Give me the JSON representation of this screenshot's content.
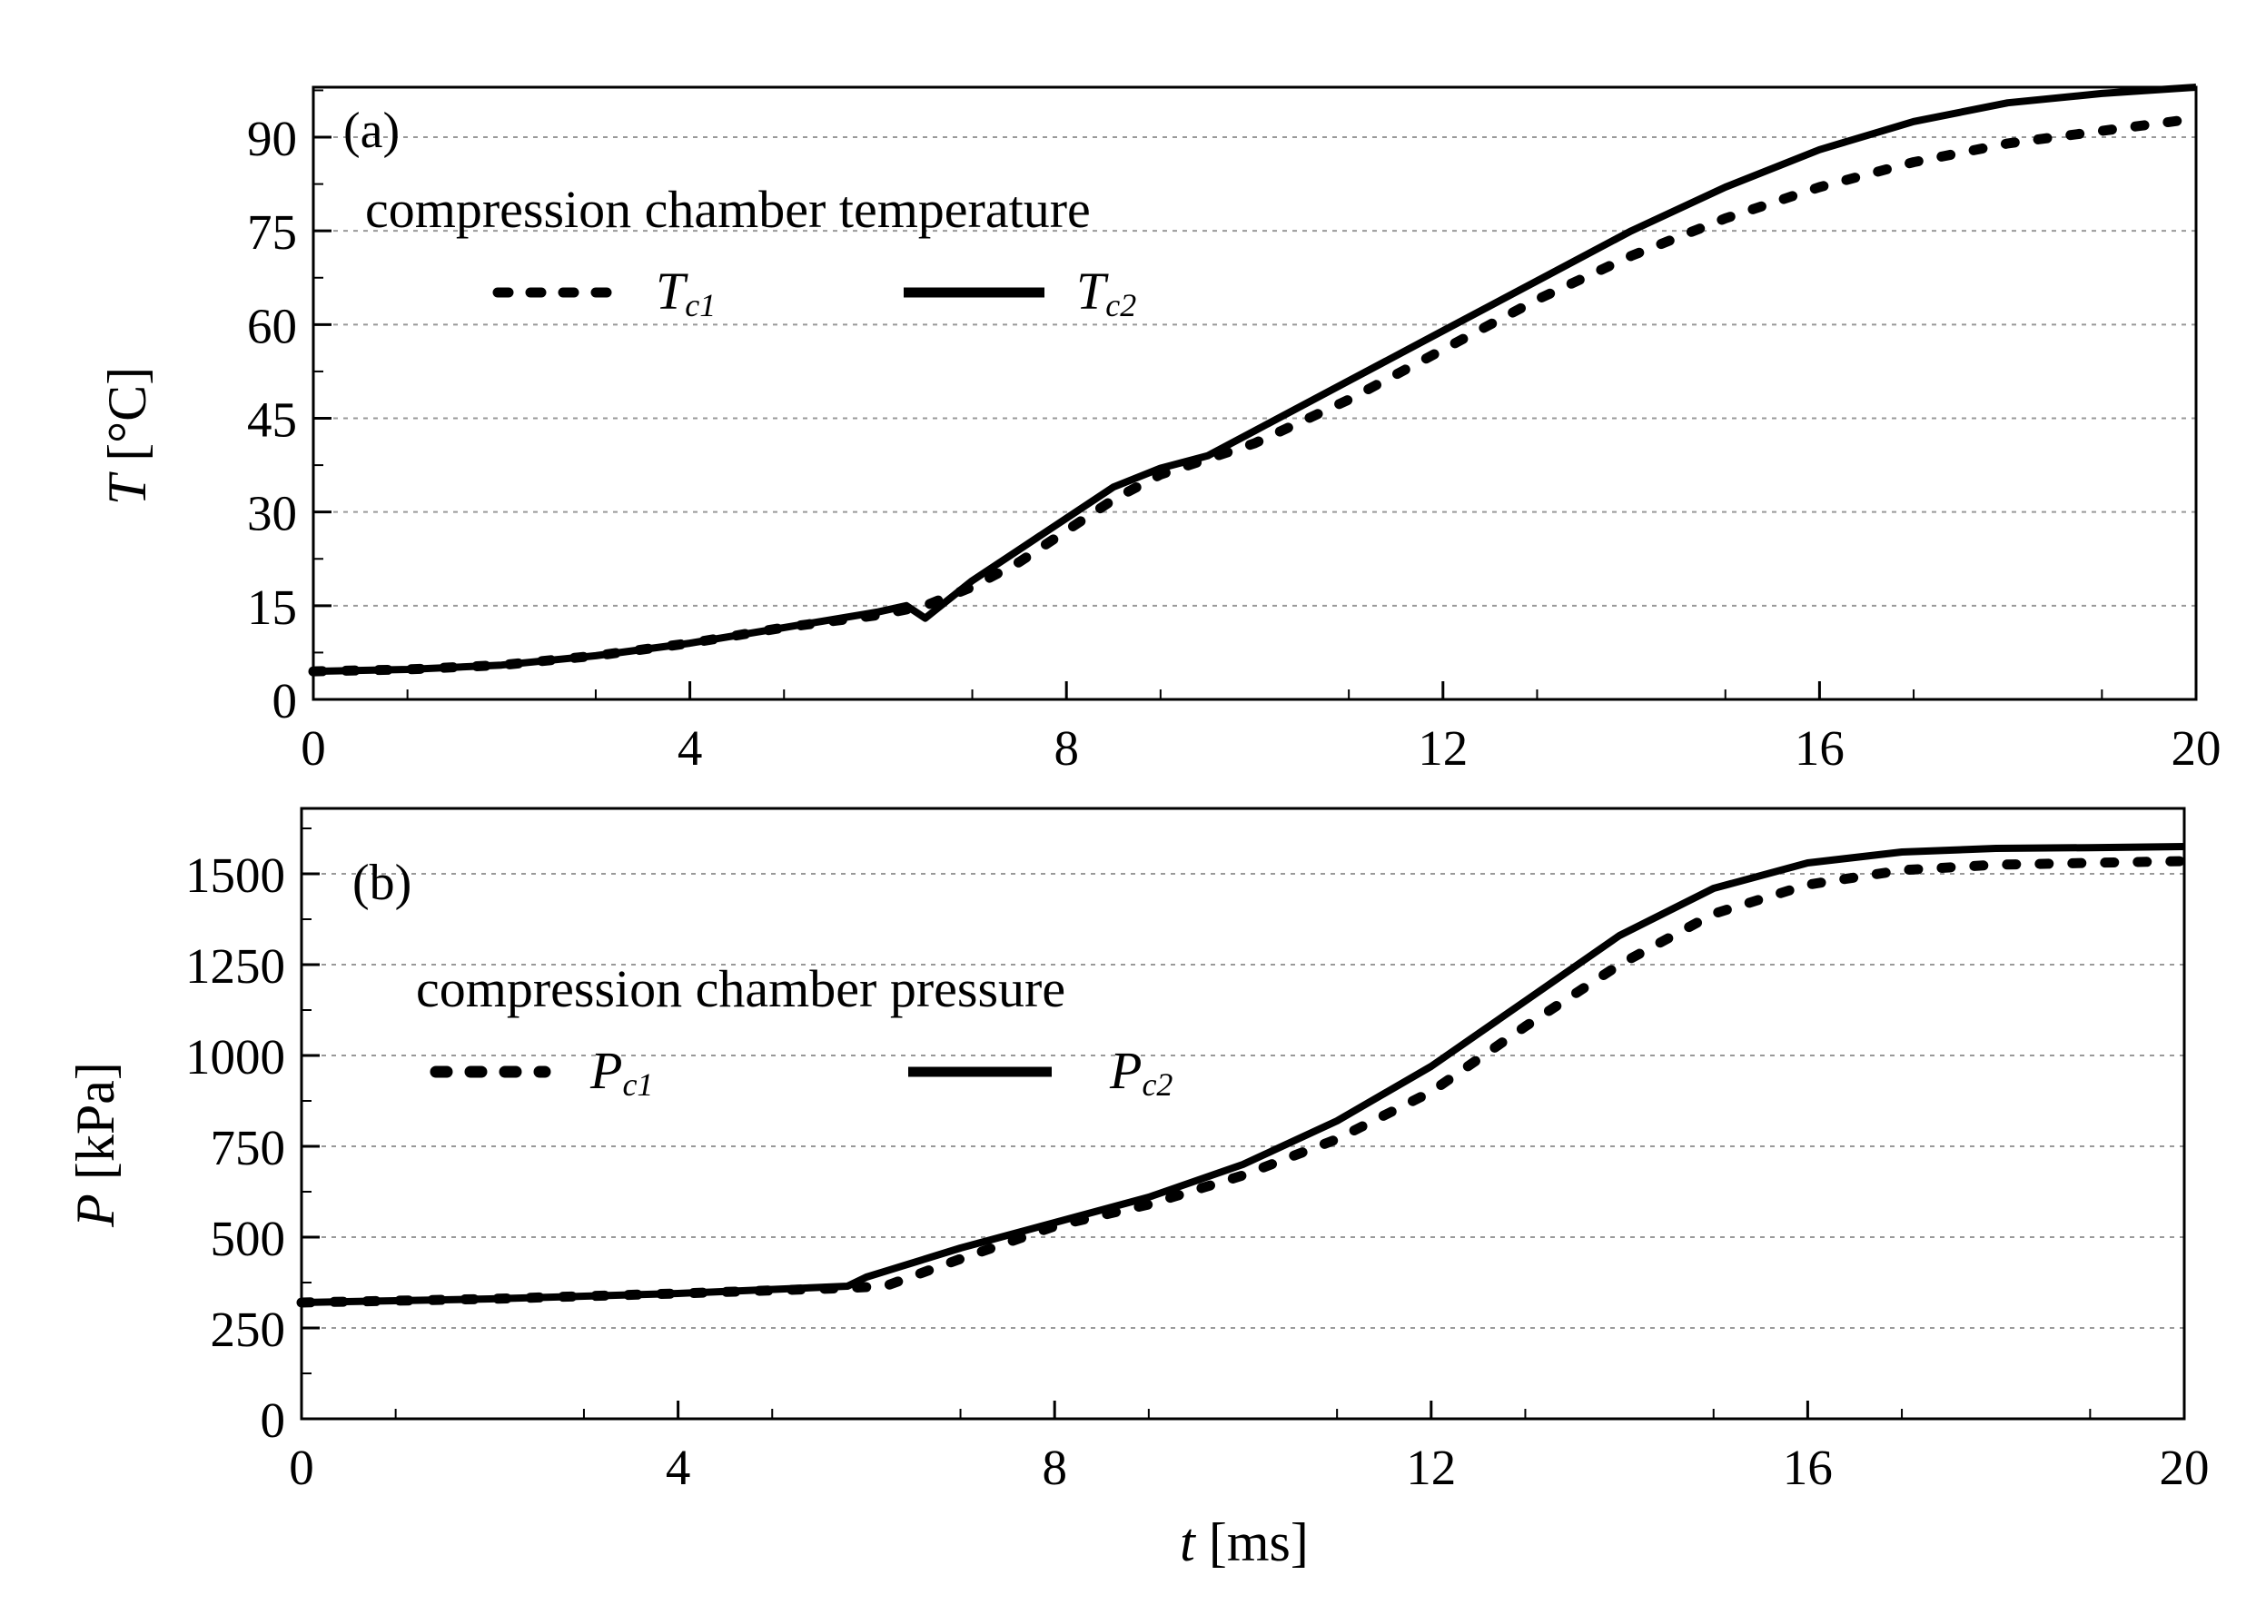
{
  "chart_data": [
    {
      "type": "line",
      "panel_label": "(a)",
      "title": "compression chamber temperature",
      "ylabel_symbol": "T",
      "ylabel_unit": "[°C]",
      "xlim": [
        0,
        20
      ],
      "ylim": [
        0,
        98
      ],
      "xticks": [
        0,
        4,
        8,
        12,
        16,
        20
      ],
      "yticks": [
        0,
        15,
        30,
        45,
        60,
        75,
        90
      ],
      "grid": "horizontal dotted",
      "series": [
        {
          "name": "T",
          "sub": "c1",
          "style": "dotted",
          "x": [
            0,
            1,
            2,
            3,
            4,
            5,
            6,
            6.5,
            7,
            7.5,
            8,
            8.5,
            9,
            9.5,
            10,
            11,
            12,
            13,
            14,
            15,
            16,
            17,
            18,
            19,
            20
          ],
          "y": [
            4.5,
            4.8,
            5.5,
            7,
            9,
            11.5,
            13.5,
            15,
            18,
            22,
            27,
            32,
            36,
            38.5,
            41,
            48,
            56,
            64,
            71,
            77,
            82,
            86,
            89,
            91,
            93
          ]
        },
        {
          "name": "T",
          "sub": "c2",
          "style": "solid",
          "x": [
            0,
            1,
            2,
            3,
            4,
            5,
            6,
            6.3,
            6.5,
            7,
            7.5,
            8,
            8.5,
            9,
            9.5,
            10,
            11,
            12,
            13,
            14,
            15,
            16,
            17,
            18,
            19,
            20
          ],
          "y": [
            4.5,
            4.8,
            5.5,
            7,
            9,
            11.5,
            14,
            15,
            13,
            19,
            24,
            29,
            34,
            37,
            39,
            43,
            51,
            59,
            67,
            75,
            82,
            88,
            92.5,
            95.5,
            97,
            98
          ]
        }
      ]
    },
    {
      "type": "line",
      "panel_label": "(b)",
      "title": "compression chamber pressure",
      "ylabel_symbol": "P",
      "ylabel_unit": "[kPa]",
      "xlabel_symbol": "t",
      "xlabel_unit": "[ms]",
      "xlim": [
        0,
        20
      ],
      "ylim": [
        0,
        1680
      ],
      "xticks": [
        0,
        4,
        8,
        12,
        16,
        20
      ],
      "yticks": [
        0,
        250,
        500,
        750,
        1000,
        1250,
        1500
      ],
      "grid": "horizontal dotted",
      "series": [
        {
          "name": "P",
          "sub": "c1",
          "style": "dotted",
          "x": [
            0,
            2,
            4,
            5.8,
            6.2,
            7,
            8,
            9,
            10,
            11,
            12,
            13,
            14,
            15,
            16,
            17,
            18,
            19,
            20
          ],
          "y": [
            320,
            330,
            345,
            360,
            365,
            440,
            530,
            590,
            670,
            770,
            900,
            1080,
            1250,
            1390,
            1470,
            1510,
            1525,
            1530,
            1535
          ]
        },
        {
          "name": "P",
          "sub": "c2",
          "style": "solid",
          "x": [
            0,
            2,
            4,
            5.8,
            6,
            7,
            8,
            9,
            10,
            11,
            12,
            13,
            14,
            15,
            16,
            17,
            18,
            19,
            20
          ],
          "y": [
            320,
            330,
            345,
            365,
            390,
            470,
            540,
            610,
            700,
            820,
            970,
            1150,
            1330,
            1460,
            1530,
            1560,
            1570,
            1572,
            1575
          ]
        }
      ]
    }
  ]
}
